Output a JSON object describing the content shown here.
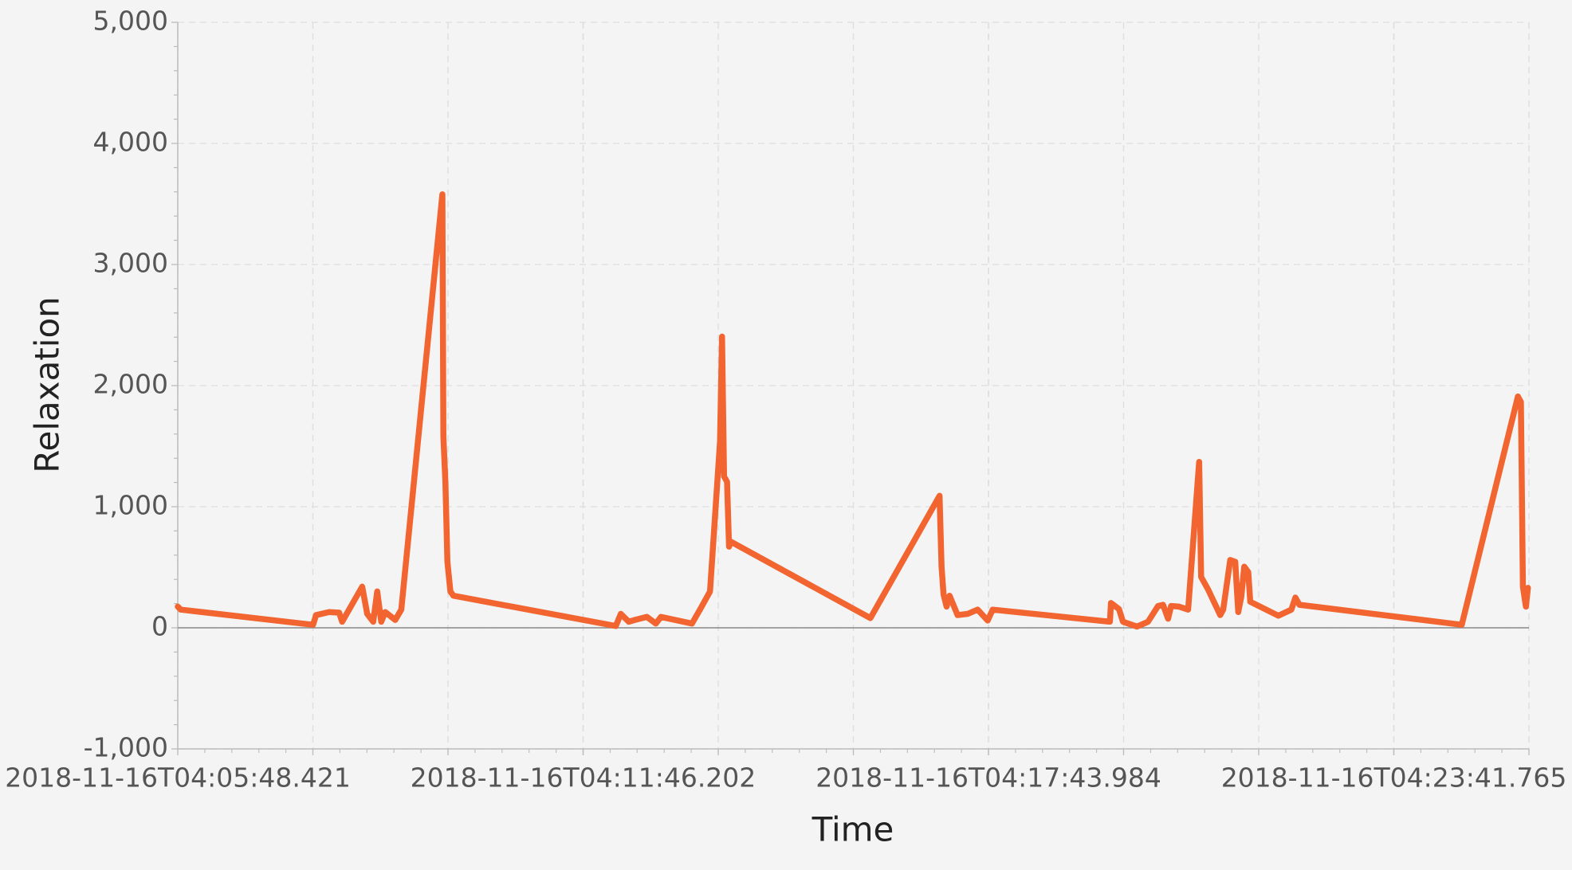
{
  "chart_data": {
    "type": "line",
    "xlabel": "Time",
    "ylabel": "Relaxation",
    "color": "#f26430",
    "xlim": [
      1542341148421,
      1542342341025
    ],
    "xticks": [
      {
        "value": 1542341148421,
        "label": "2018-11-16T04:05:48.421"
      },
      {
        "value": 1542341506202,
        "label": "2018-11-16T04:11:46.202"
      },
      {
        "value": 1542341863984,
        "label": "2018-11-16T04:17:43.984"
      },
      {
        "value": 1542342221765,
        "label": "2018-11-16T04:23:41.765"
      }
    ],
    "ylim": [
      -1000,
      5000
    ],
    "yticks": [
      {
        "value": -1000,
        "label": "-1,000"
      },
      0,
      {
        "value": 1000,
        "label": "1,000"
      },
      {
        "value": 2000,
        "label": "2,000"
      },
      {
        "value": 3000,
        "label": "3,000"
      },
      {
        "value": 4000,
        "label": "4,000"
      },
      {
        "value": 5000,
        "label": "5,000"
      }
    ],
    "grid": true,
    "x": [
      1542341148421,
      1542341151075,
      1542341267856,
      1542341270510,
      1542341282011,
      1542341290858,
      1542341293512,
      1542341311206,
      1542341315629,
      1542341320938,
      1542341324476,
      1542341328015,
      1542341331554,
      1542341340401,
      1542341345709,
      1542341381982,
      1542341382867,
      1542341384636,
      1542341386405,
      1542341389059,
      1542341391714,
      1542341535035,
      1542341539458,
      1542341546536,
      1542341551844,
      1542341562461,
      1542341570423,
      1542341574846,
      1542341602272,
      1542341610234,
      1542341618197,
      1542341627044,
      1542341628813,
      1542341630583,
      1542341633237,
      1542341635006,
      1542341636775,
      1542341759749,
      1542341820793,
      1542341822562,
      1542341824332,
      1542341826986,
      1542341829640,
      1542341836718,
      1542341845565,
      1542341854412,
      1542341863259,
      1542341867682,
      1542341971192,
      1542341972077,
      1542341979154,
      1542341982693,
      1542341995079,
      1542342004811,
      1542342013658,
      1542342018081,
      1542342022505,
      1542342025159,
      1542342032236,
      1542342040199,
      1542342049930,
      1542342051700,
      1542342057893,
      1542342064970,
      1542342068509,
      1542342071163,
      1542342077356,
      1542342081780,
      1542342084434,
      1542342087088,
      1542342089742,
      1542342093281,
      1542342095050,
      1542342119822,
      1542342131323,
      1542342134862,
      1542342138400,
      1542342281722,
      1542342331265,
      1542342333919,
      1542342335688,
      1542342338343,
      1542342340112
    ],
    "values": [
      175,
      150,
      25,
      105,
      130,
      125,
      50,
      340,
      115,
      50,
      300,
      50,
      130,
      65,
      150,
      3580,
      1580,
      1205,
      545,
      300,
      265,
      15,
      115,
      50,
      65,
      90,
      35,
      90,
      35,
      165,
      300,
      1540,
      2405,
      1250,
      1205,
      670,
      710,
      80,
      1090,
      505,
      275,
      175,
      265,
      105,
      115,
      150,
      60,
      150,
      50,
      205,
      155,
      50,
      10,
      50,
      180,
      190,
      75,
      180,
      175,
      150,
      1370,
      420,
      315,
      175,
      105,
      150,
      560,
      545,
      130,
      255,
      505,
      460,
      215,
      100,
      150,
      250,
      190,
      25,
      1910,
      1865,
      340,
      175,
      330
    ]
  }
}
